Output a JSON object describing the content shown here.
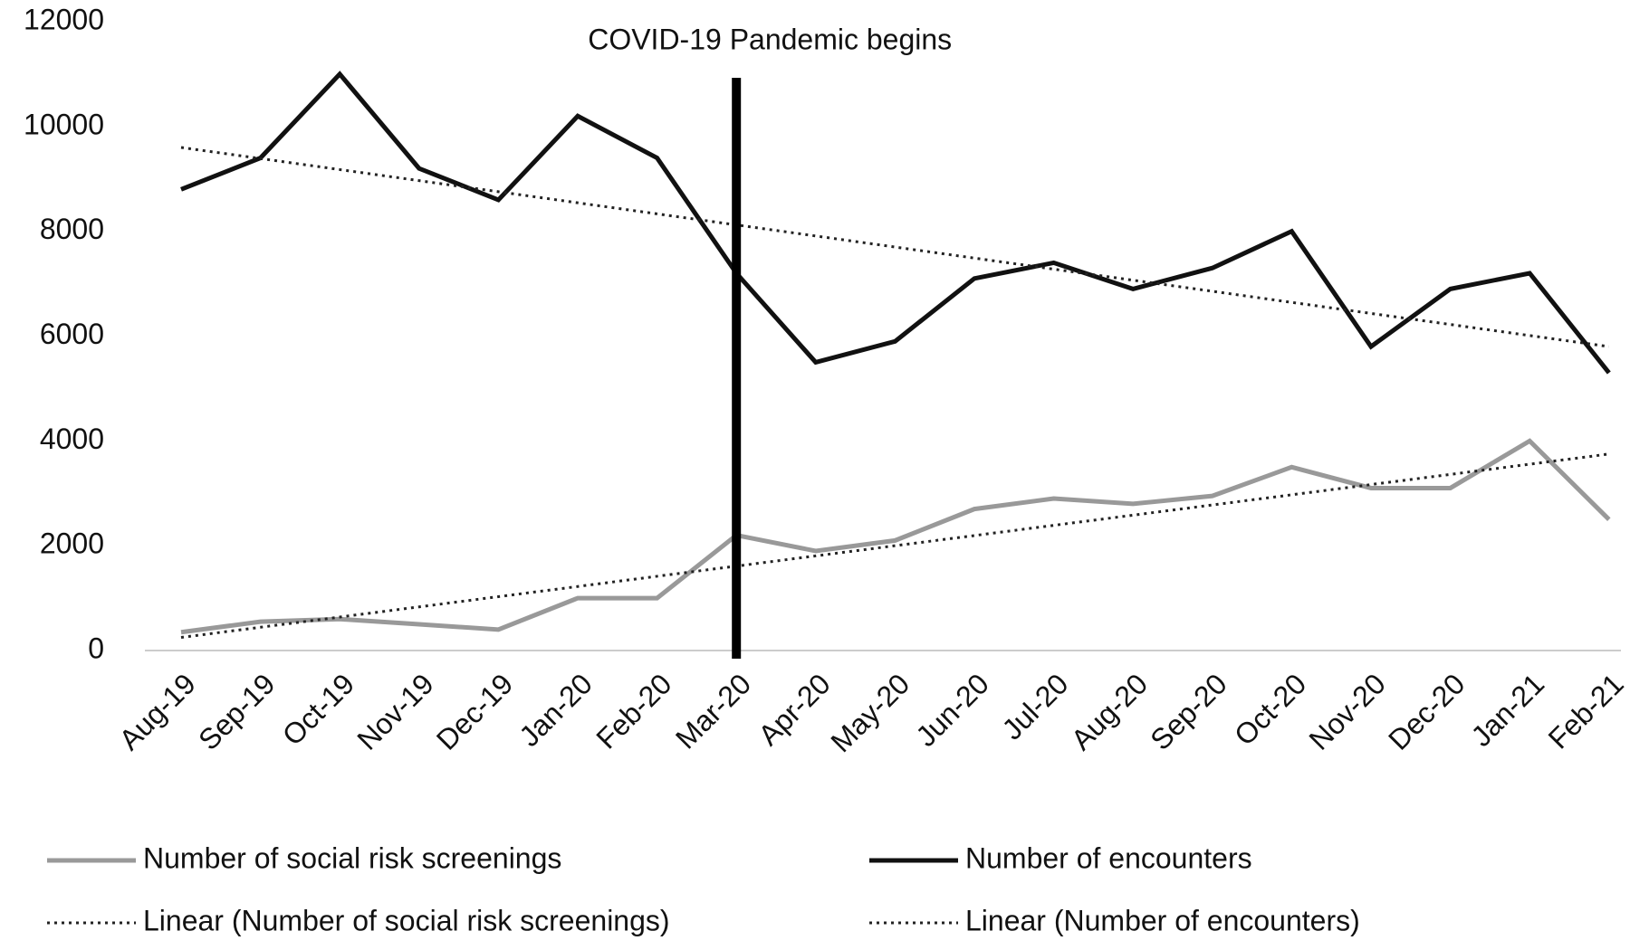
{
  "chart_data": {
    "type": "line",
    "categories": [
      "Aug-19",
      "Sep-19",
      "Oct-19",
      "Nov-19",
      "Dec-19",
      "Jan-20",
      "Feb-20",
      "Mar-20",
      "Apr-20",
      "May-20",
      "Jun-20",
      "Jul-20",
      "Aug-20",
      "Sep-20",
      "Oct-20",
      "Nov-20",
      "Dec-20",
      "Jan-21",
      "Feb-21"
    ],
    "series": [
      {
        "name": "Number of social risk screenings",
        "color": "#999999",
        "line_style": "solid",
        "values": [
          350,
          550,
          600,
          500,
          400,
          1000,
          1000,
          2200,
          1900,
          2100,
          2700,
          2900,
          2800,
          2950,
          3500,
          3100,
          3100,
          4000,
          2500
        ]
      },
      {
        "name": "Number of encounters",
        "color": "#111111",
        "line_style": "solid",
        "values": [
          8800,
          9400,
          11000,
          9200,
          8600,
          10200,
          9400,
          7200,
          5500,
          5900,
          7100,
          7400,
          6900,
          7300,
          8000,
          5800,
          6900,
          7200,
          5300
        ]
      },
      {
        "name": "Linear (Number of social risk screenings)",
        "color": "#222222",
        "line_style": "dotted",
        "values": [
          250,
          444,
          639,
          833,
          1028,
          1222,
          1417,
          1611,
          1806,
          2000,
          2194,
          2389,
          2583,
          2778,
          2972,
          3167,
          3361,
          3556,
          3750
        ]
      },
      {
        "name": "Linear (Number of encounters)",
        "color": "#222222",
        "line_style": "dotted",
        "values": [
          9600,
          9389,
          9178,
          8967,
          8756,
          8544,
          8333,
          8122,
          7911,
          7700,
          7489,
          7278,
          7067,
          6856,
          6644,
          6433,
          6222,
          6011,
          5800
        ]
      }
    ],
    "annotations": [
      {
        "text": "COVID-19 Pandemic begins",
        "x": "Mar-20"
      }
    ],
    "ylim": [
      0,
      12000
    ],
    "yticks": [
      0,
      2000,
      4000,
      6000,
      8000,
      10000,
      12000
    ],
    "grid": false
  }
}
